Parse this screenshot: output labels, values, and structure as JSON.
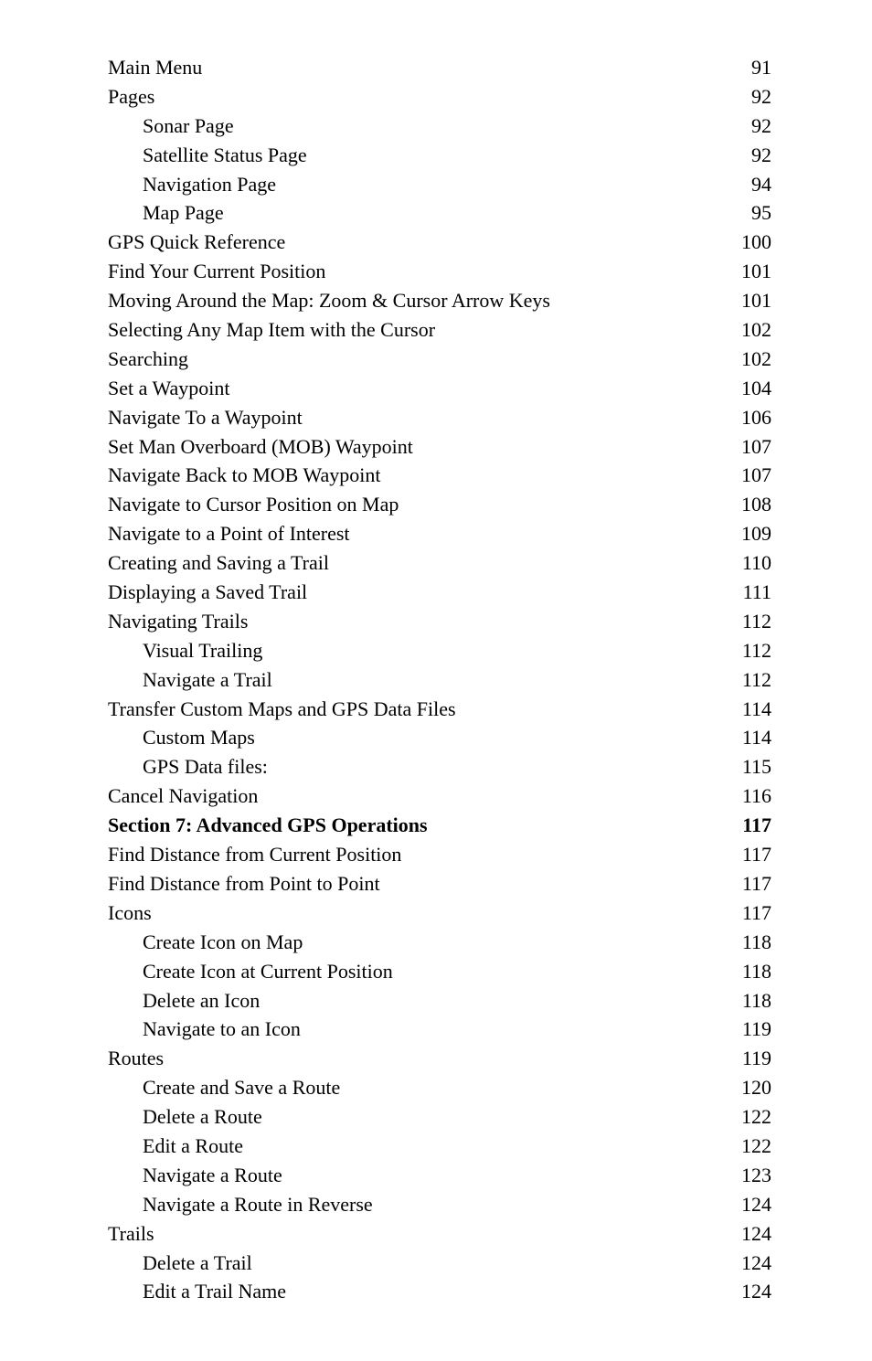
{
  "toc": {
    "entries": [
      {
        "title": "Main Menu",
        "page": "91",
        "indent": 0,
        "bold": false
      },
      {
        "title": "Pages",
        "page": "92",
        "indent": 0,
        "bold": false
      },
      {
        "title": "Sonar Page",
        "page": "92",
        "indent": 1,
        "bold": false
      },
      {
        "title": "Satellite Status Page",
        "page": "92",
        "indent": 1,
        "bold": false
      },
      {
        "title": "Navigation Page",
        "page": "94",
        "indent": 1,
        "bold": false
      },
      {
        "title": "Map Page",
        "page": "95",
        "indent": 1,
        "bold": false
      },
      {
        "title": "GPS Quick Reference",
        "page": "100",
        "indent": 0,
        "bold": false
      },
      {
        "title": "Find Your Current Position",
        "page": "101",
        "indent": 0,
        "bold": false
      },
      {
        "title": "Moving Around the Map: Zoom & Cursor Arrow Keys",
        "page": "101",
        "indent": 0,
        "bold": false
      },
      {
        "title": "Selecting Any Map Item with the Cursor",
        "page": "102",
        "indent": 0,
        "bold": false
      },
      {
        "title": "Searching",
        "page": "102",
        "indent": 0,
        "bold": false
      },
      {
        "title": "Set a Waypoint",
        "page": "104",
        "indent": 0,
        "bold": false
      },
      {
        "title": "Navigate To a Waypoint",
        "page": "106",
        "indent": 0,
        "bold": false
      },
      {
        "title": "Set Man Overboard (MOB) Waypoint",
        "page": "107",
        "indent": 0,
        "bold": false
      },
      {
        "title": "Navigate Back to MOB Waypoint",
        "page": "107",
        "indent": 0,
        "bold": false
      },
      {
        "title": "Navigate to Cursor Position on Map",
        "page": "108",
        "indent": 0,
        "bold": false
      },
      {
        "title": "Navigate to a Point of Interest",
        "page": "109",
        "indent": 0,
        "bold": false
      },
      {
        "title": "Creating and Saving a Trail",
        "page": "110",
        "indent": 0,
        "bold": false
      },
      {
        "title": "Displaying a Saved Trail",
        "page": "111",
        "indent": 0,
        "bold": false
      },
      {
        "title": "Navigating Trails",
        "page": "112",
        "indent": 0,
        "bold": false
      },
      {
        "title": "Visual Trailing",
        "page": "112",
        "indent": 1,
        "bold": false
      },
      {
        "title": "Navigate a Trail",
        "page": "112",
        "indent": 1,
        "bold": false
      },
      {
        "title": "Transfer Custom Maps and GPS Data Files",
        "page": "114",
        "indent": 0,
        "bold": false
      },
      {
        "title": "Custom Maps",
        "page": "114",
        "indent": 1,
        "bold": false
      },
      {
        "title": "GPS Data files:",
        "page": "115",
        "indent": 1,
        "bold": false
      },
      {
        "title": "Cancel Navigation",
        "page": "116",
        "indent": 0,
        "bold": false
      },
      {
        "title": "Section 7: Advanced GPS Operations",
        "page": "117",
        "indent": 0,
        "bold": true
      },
      {
        "title": "Find Distance from Current Position",
        "page": "117",
        "indent": 0,
        "bold": false
      },
      {
        "title": "Find Distance from Point to Point",
        "page": "117",
        "indent": 0,
        "bold": false
      },
      {
        "title": "Icons",
        "page": "117",
        "indent": 0,
        "bold": false
      },
      {
        "title": "Create Icon on Map",
        "page": "118",
        "indent": 1,
        "bold": false
      },
      {
        "title": "Create Icon at Current Position",
        "page": "118",
        "indent": 1,
        "bold": false
      },
      {
        "title": "Delete an Icon",
        "page": "118",
        "indent": 1,
        "bold": false
      },
      {
        "title": "Navigate to an Icon",
        "page": "119",
        "indent": 1,
        "bold": false
      },
      {
        "title": "Routes",
        "page": "119",
        "indent": 0,
        "bold": false
      },
      {
        "title": "Create and Save a Route",
        "page": "120",
        "indent": 1,
        "bold": false
      },
      {
        "title": "Delete a Route",
        "page": "122",
        "indent": 1,
        "bold": false
      },
      {
        "title": "Edit a Route",
        "page": "122",
        "indent": 1,
        "bold": false
      },
      {
        "title": "Navigate a Route",
        "page": "123",
        "indent": 1,
        "bold": false
      },
      {
        "title": "Navigate a Route in Reverse",
        "page": "124",
        "indent": 1,
        "bold": false
      },
      {
        "title": "Trails",
        "page": "124",
        "indent": 0,
        "bold": false
      },
      {
        "title": "Delete a Trail",
        "page": "124",
        "indent": 1,
        "bold": false
      },
      {
        "title": "Edit a Trail Name",
        "page": "124",
        "indent": 1,
        "bold": false
      }
    ]
  }
}
